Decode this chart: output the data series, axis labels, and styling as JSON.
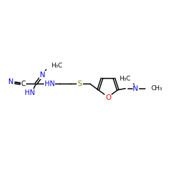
{
  "background": "#ffffff",
  "atom_colors": {
    "C": "#000000",
    "N": "#0000ff",
    "O": "#ff0000",
    "S": "#808000",
    "H": "#000000"
  },
  "bond_color": "#000000",
  "figsize": [
    2.5,
    2.5
  ],
  "dpi": 100,
  "xlim": [
    0,
    250
  ],
  "ylim": [
    0,
    250
  ]
}
